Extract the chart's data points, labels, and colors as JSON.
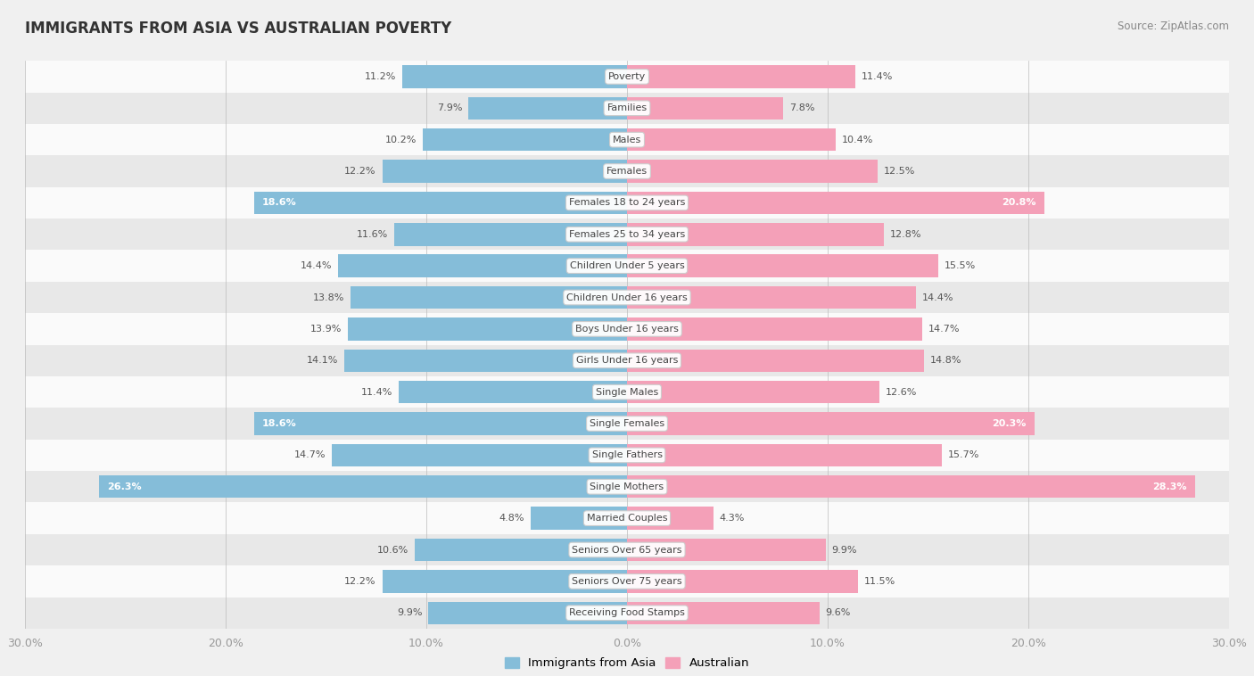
{
  "title": "IMMIGRANTS FROM ASIA VS AUSTRALIAN POVERTY",
  "source": "Source: ZipAtlas.com",
  "categories": [
    "Poverty",
    "Families",
    "Males",
    "Females",
    "Females 18 to 24 years",
    "Females 25 to 34 years",
    "Children Under 5 years",
    "Children Under 16 years",
    "Boys Under 16 years",
    "Girls Under 16 years",
    "Single Males",
    "Single Females",
    "Single Fathers",
    "Single Mothers",
    "Married Couples",
    "Seniors Over 65 years",
    "Seniors Over 75 years",
    "Receiving Food Stamps"
  ],
  "asia_values": [
    11.2,
    7.9,
    10.2,
    12.2,
    18.6,
    11.6,
    14.4,
    13.8,
    13.9,
    14.1,
    11.4,
    18.6,
    14.7,
    26.3,
    4.8,
    10.6,
    12.2,
    9.9
  ],
  "aus_values": [
    11.4,
    7.8,
    10.4,
    12.5,
    20.8,
    12.8,
    15.5,
    14.4,
    14.7,
    14.8,
    12.6,
    20.3,
    15.7,
    28.3,
    4.3,
    9.9,
    11.5,
    9.6
  ],
  "asia_color": "#85BDD9",
  "aus_color": "#F4A0B8",
  "highlight_threshold": 17.0,
  "bar_height": 0.72,
  "xlim": 30.0,
  "bg_color": "#f0f0f0",
  "row_bg_even": "#fafafa",
  "row_bg_odd": "#e8e8e8",
  "axis_label_color": "#999999",
  "legend_asia": "Immigrants from Asia",
  "legend_aus": "Australian",
  "tick_positions": [
    -30,
    -20,
    -10,
    0,
    10,
    20,
    30
  ]
}
